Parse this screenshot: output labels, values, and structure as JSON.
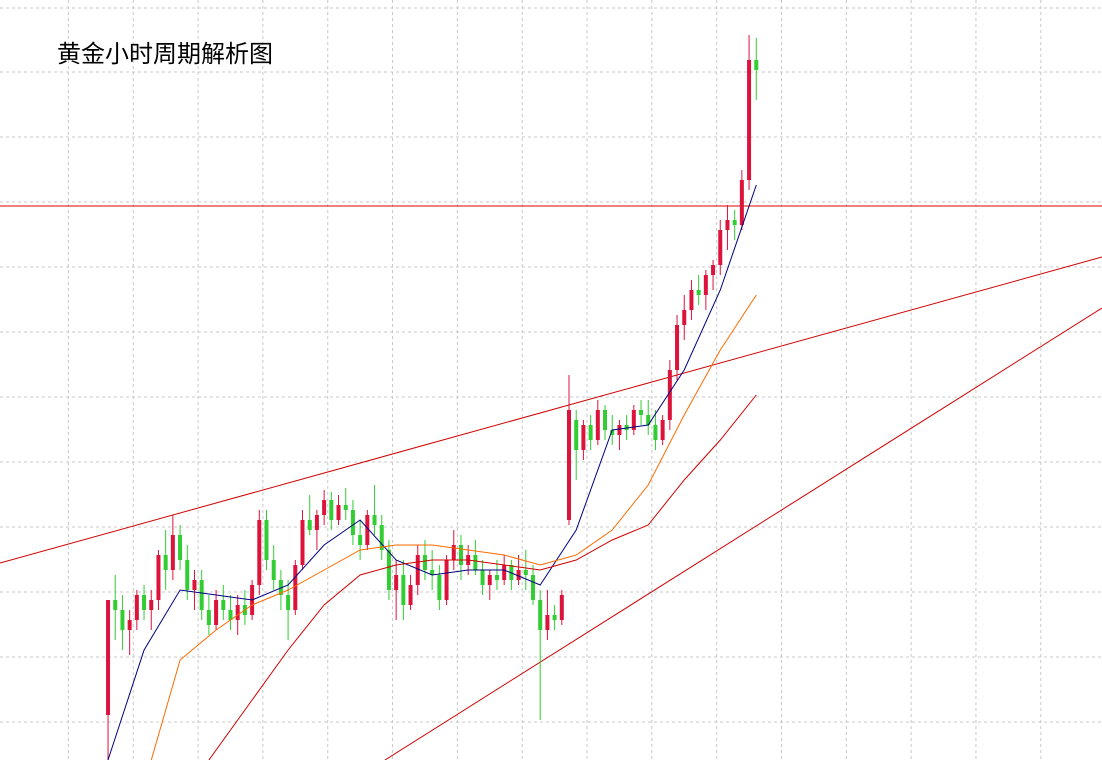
{
  "chart_data": {
    "type": "candlestick",
    "title": "黄金小时周期解析图",
    "xlim": [
      -15,
      138
    ],
    "ylim": [
      0,
      760
    ],
    "xticks": [
      -5.5,
      3.5,
      12.5,
      21.5,
      30.5,
      39.5,
      48.5,
      57.5,
      66.5,
      75.5,
      84.5,
      93.5,
      102.5,
      111.5,
      120.5,
      129.5
    ],
    "yticks": [
      38,
      103,
      168,
      233,
      298,
      363,
      428,
      493,
      558,
      623,
      688,
      752
    ],
    "grid": true,
    "up_color": "#dc143c",
    "down_color": "#32cd32",
    "open": [
      45,
      160,
      150,
      130,
      140,
      165,
      150,
      160,
      205,
      190,
      225,
      200,
      170,
      180,
      150,
      135,
      160,
      150,
      140,
      155,
      145,
      175,
      240,
      200,
      180,
      165,
      150,
      195,
      240,
      230,
      245,
      260,
      240,
      255,
      250,
      225,
      215,
      245,
      235,
      210,
      170,
      185,
      155,
      175,
      205,
      190,
      185,
      160,
      200,
      215,
      195,
      205,
      190,
      175,
      185,
      180,
      195,
      180,
      190,
      185,
      160,
      130,
      145,
      140,
      240,
      340,
      310,
      335,
      320,
      350,
      330,
      325,
      335,
      330,
      350,
      345,
      335,
      320,
      340,
      390,
      435,
      450,
      470,
      465,
      485,
      495,
      530,
      540,
      535,
      580,
      700
    ],
    "high": [
      160,
      185,
      165,
      150,
      170,
      175,
      170,
      210,
      230,
      245,
      235,
      215,
      190,
      190,
      165,
      170,
      175,
      165,
      165,
      170,
      180,
      250,
      250,
      215,
      190,
      180,
      200,
      250,
      265,
      250,
      270,
      268,
      265,
      272,
      260,
      240,
      250,
      275,
      245,
      220,
      200,
      200,
      185,
      215,
      220,
      210,
      195,
      205,
      230,
      225,
      215,
      220,
      200,
      190,
      200,
      205,
      200,
      205,
      210,
      195,
      170,
      170,
      155,
      170,
      385,
      350,
      340,
      345,
      360,
      355,
      345,
      340,
      345,
      355,
      360,
      360,
      350,
      345,
      400,
      445,
      465,
      480,
      485,
      490,
      500,
      540,
      555,
      550,
      590,
      725,
      722
    ],
    "low": [
      0,
      120,
      110,
      105,
      130,
      140,
      130,
      150,
      170,
      180,
      190,
      160,
      150,
      140,
      125,
      130,
      140,
      130,
      125,
      135,
      140,
      165,
      190,
      170,
      150,
      120,
      145,
      190,
      225,
      210,
      235,
      230,
      235,
      240,
      215,
      200,
      210,
      225,
      200,
      160,
      140,
      140,
      150,
      165,
      180,
      170,
      150,
      155,
      190,
      180,
      185,
      185,
      165,
      160,
      170,
      175,
      170,
      175,
      170,
      155,
      40,
      120,
      130,
      135,
      235,
      280,
      300,
      310,
      315,
      320,
      315,
      310,
      320,
      325,
      335,
      325,
      310,
      315,
      330,
      380,
      420,
      440,
      455,
      450,
      470,
      485,
      510,
      520,
      530,
      570,
      660
    ],
    "close": [
      160,
      150,
      130,
      140,
      165,
      150,
      160,
      205,
      190,
      225,
      200,
      170,
      180,
      150,
      135,
      160,
      150,
      140,
      155,
      145,
      175,
      240,
      200,
      180,
      165,
      150,
      195,
      240,
      230,
      245,
      260,
      240,
      255,
      250,
      225,
      215,
      245,
      235,
      210,
      170,
      185,
      155,
      175,
      205,
      190,
      185,
      160,
      200,
      215,
      195,
      205,
      190,
      175,
      185,
      180,
      195,
      180,
      190,
      185,
      160,
      130,
      145,
      140,
      165,
      350,
      310,
      335,
      320,
      350,
      330,
      325,
      335,
      330,
      350,
      345,
      335,
      320,
      340,
      390,
      435,
      450,
      470,
      465,
      485,
      495,
      530,
      540,
      535,
      580,
      700,
      690
    ],
    "series": [
      {
        "color": "#000080",
        "x": [
          0,
          5,
          10,
          15,
          20,
          25,
          30,
          35,
          40,
          45,
          50,
          55,
          60,
          65,
          70,
          75,
          80,
          85,
          90
        ],
        "values": [
          0,
          110,
          170,
          165,
          160,
          175,
          215,
          240,
          200,
          185,
          190,
          190,
          175,
          230,
          330,
          335,
          390,
          470,
          575
        ]
      },
      {
        "color": "#ff6a00",
        "x": [
          6,
          10,
          15,
          20,
          25,
          30,
          35,
          40,
          45,
          50,
          55,
          60,
          65,
          70,
          75,
          80,
          85,
          90
        ],
        "values": [
          0,
          100,
          130,
          155,
          170,
          190,
          210,
          215,
          215,
          210,
          205,
          195,
          205,
          230,
          275,
          345,
          410,
          465
        ]
      },
      {
        "color": "#d00000",
        "x": [
          14,
          20,
          25,
          30,
          35,
          40,
          45,
          50,
          55,
          60,
          65,
          70,
          75,
          80,
          85,
          90
        ],
        "values": [
          0,
          60,
          110,
          155,
          185,
          195,
          200,
          200,
          195,
          190,
          200,
          220,
          235,
          280,
          320,
          365
        ]
      }
    ]
  }
}
